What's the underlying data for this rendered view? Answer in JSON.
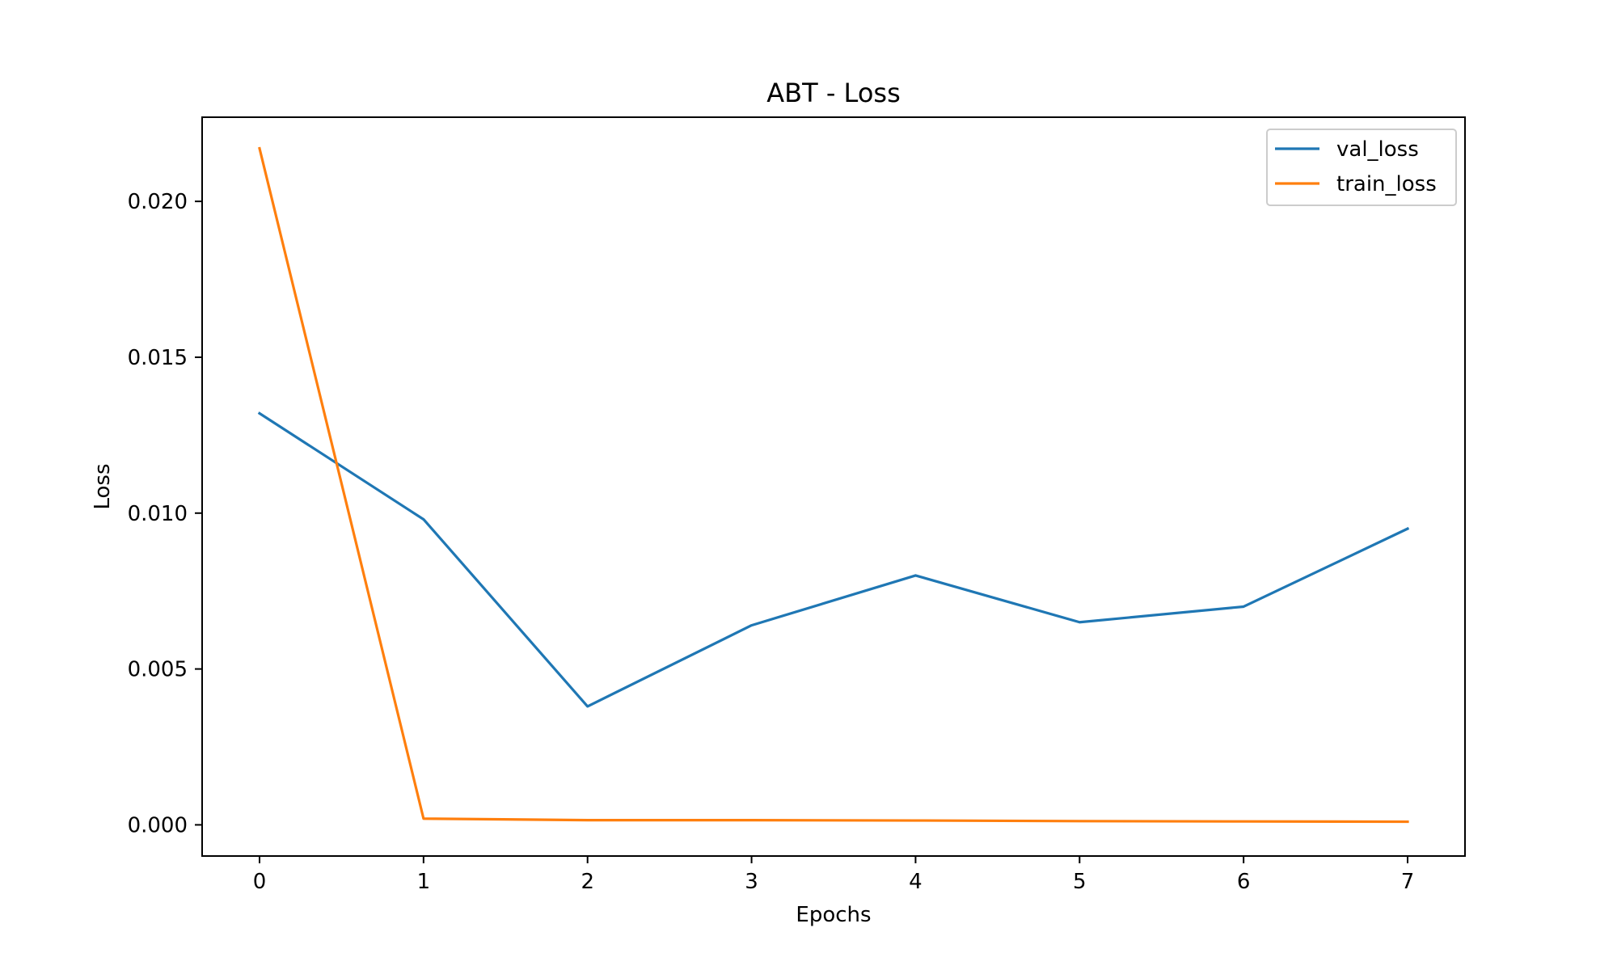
{
  "chart_data": {
    "type": "line",
    "title": "ABT - Loss",
    "xlabel": "Epochs",
    "ylabel": "Loss",
    "x": [
      0,
      1,
      2,
      3,
      4,
      5,
      6,
      7
    ],
    "xlim": [
      -0.35,
      7.35
    ],
    "ylim": [
      -0.001,
      0.0227
    ],
    "xticks": [
      0,
      1,
      2,
      3,
      4,
      5,
      6,
      7
    ],
    "xtick_labels": [
      "0",
      "1",
      "2",
      "3",
      "4",
      "5",
      "6",
      "7"
    ],
    "yticks": [
      0.0,
      0.005,
      0.01,
      0.015,
      0.02
    ],
    "ytick_labels": [
      "0.000",
      "0.005",
      "0.010",
      "0.015",
      "0.020"
    ],
    "grid": false,
    "legend_position": "top-right",
    "series": [
      {
        "name": "val_loss",
        "color": "#1f77b4",
        "values": [
          0.0132,
          0.0098,
          0.0038,
          0.0064,
          0.008,
          0.0065,
          0.007,
          0.0095
        ]
      },
      {
        "name": "train_loss",
        "color": "#ff7f0e",
        "values": [
          0.0217,
          0.0002,
          0.00015,
          0.00015,
          0.00014,
          0.00012,
          0.00011,
          0.0001
        ]
      }
    ]
  }
}
